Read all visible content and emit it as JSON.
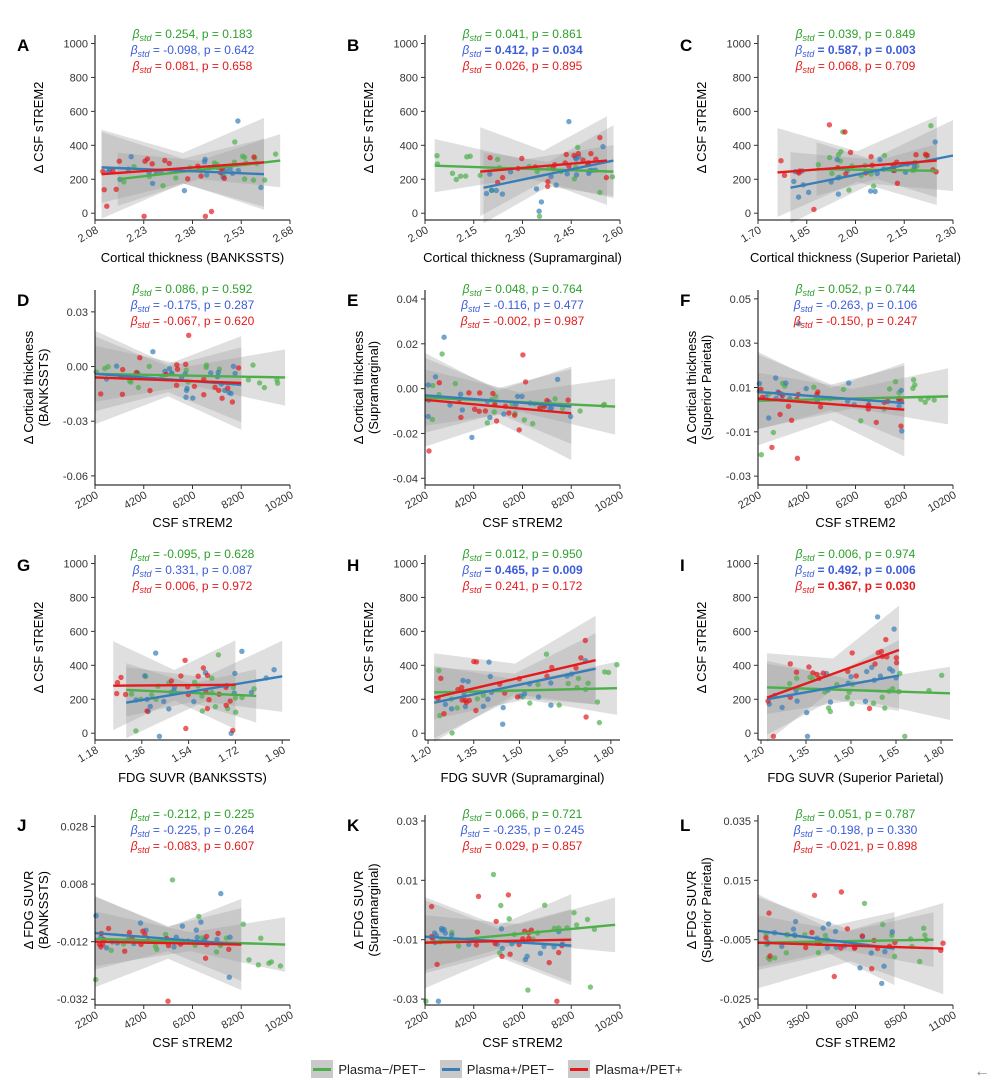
{
  "legend": {
    "items": [
      {
        "label": "Plasma−/PET−",
        "color": "#4daf4a"
      },
      {
        "label": "Plasma+/PET−",
        "color": "#377eb8"
      },
      {
        "label": "Plasma+/PET+",
        "color": "#e41a1c"
      }
    ]
  },
  "stat_colors": [
    "#2ca02c",
    "#3b5bdb",
    "#e41a1c"
  ],
  "chart_data": [
    {
      "panel": "A",
      "type": "scatter",
      "xlabel": "Cortical thickness (BANKSSTS)",
      "ylabel": [
        "Δ CSF sTREM2"
      ],
      "xlim": [
        2.08,
        2.68
      ],
      "ylim": [
        -40,
        1050
      ],
      "xticks": [
        "2.08",
        "2.23",
        "2.38",
        "2.53",
        "2.68"
      ],
      "yticks": [
        "0",
        "200",
        "400",
        "600",
        "800",
        "1000"
      ],
      "tick_rotate": true,
      "stats": [
        {
          "text": "= 0.254, p = 0.183",
          "bold": false
        },
        {
          "text": "= -0.098, p = 0.642",
          "bold": false
        },
        {
          "text": "= 0.081, p = 0.658",
          "bold": false
        }
      ],
      "lines": [
        [
          2.15,
          200,
          2.65,
          310
        ],
        [
          2.1,
          270,
          2.6,
          230
        ],
        [
          2.1,
          230,
          2.6,
          300
        ]
      ],
      "seed": 11
    },
    {
      "panel": "B",
      "type": "scatter",
      "xlabel": "Cortical thickness (Supramarginal)",
      "ylabel": [
        "Δ CSF sTREM2"
      ],
      "xlim": [
        2.0,
        2.6
      ],
      "ylim": [
        -40,
        1050
      ],
      "xticks": [
        "2.00",
        "2.15",
        "2.30",
        "2.45",
        "2.60"
      ],
      "yticks": [
        "0",
        "200",
        "400",
        "600",
        "800",
        "1000"
      ],
      "tick_rotate": true,
      "stats": [
        {
          "text": "= 0.041, p = 0.861",
          "bold": false
        },
        {
          "text": "= 0.412, p = 0.034",
          "bold": true
        },
        {
          "text": "= 0.026, p = 0.895",
          "bold": false
        }
      ],
      "lines": [
        [
          2.03,
          280,
          2.58,
          245
        ],
        [
          2.18,
          150,
          2.58,
          310
        ],
        [
          2.17,
          245,
          2.56,
          310
        ]
      ],
      "seed": 22
    },
    {
      "panel": "C",
      "type": "scatter",
      "xlabel": "Cortical thickness (Superior Parietal)",
      "ylabel": [
        "Δ CSF sTREM2"
      ],
      "xlim": [
        1.7,
        2.3
      ],
      "ylim": [
        -40,
        1050
      ],
      "xticks": [
        "1.70",
        "1.85",
        "2.00",
        "2.15",
        "2.30"
      ],
      "yticks": [
        "0",
        "200",
        "400",
        "600",
        "800",
        "1000"
      ],
      "tick_rotate": true,
      "stats": [
        {
          "text": "= 0.039, p = 0.849",
          "bold": false
        },
        {
          "text": "= 0.587, p = 0.003",
          "bold": true
        },
        {
          "text": "= 0.068, p = 0.709",
          "bold": false
        }
      ],
      "lines": [
        [
          1.88,
          260,
          2.25,
          250
        ],
        [
          1.8,
          150,
          2.3,
          340
        ],
        [
          1.76,
          240,
          2.25,
          310
        ]
      ],
      "seed": 33
    },
    {
      "panel": "D",
      "type": "scatter",
      "xlabel": "CSF sTREM2",
      "ylabel": [
        "Δ Cortical thickness",
        "(BANKSSTS)"
      ],
      "xlim": [
        2200,
        10200
      ],
      "ylim": [
        -0.065,
        0.042
      ],
      "xticks": [
        "2200",
        "4200",
        "6200",
        "8200",
        "10200"
      ],
      "yticks": [
        "-0.06",
        "-0.03",
        "0.00",
        "0.03"
      ],
      "tick_rotate": true,
      "stats": [
        {
          "text": "= 0.086, p = 0.592",
          "bold": false
        },
        {
          "text": "= -0.175, p = 0.287",
          "bold": false
        },
        {
          "text": "= -0.067, p = 0.620",
          "bold": false
        }
      ],
      "lines": [
        [
          2200,
          -0.004,
          10000,
          -0.006
        ],
        [
          2200,
          -0.004,
          8200,
          -0.01
        ],
        [
          2200,
          -0.006,
          8200,
          -0.009
        ]
      ],
      "seed": 44
    },
    {
      "panel": "E",
      "type": "scatter",
      "xlabel": "CSF sTREM2",
      "ylabel": [
        "Δ Cortical thickness",
        "(Supramarginal)"
      ],
      "xlim": [
        2200,
        10200
      ],
      "ylim": [
        -0.043,
        0.044
      ],
      "xticks": [
        "2200",
        "4200",
        "6200",
        "8200",
        "10200"
      ],
      "yticks": [
        "-0.04",
        "-0.02",
        "0.00",
        "0.02",
        "0.04"
      ],
      "tick_rotate": true,
      "stats": [
        {
          "text": "= 0.048, p = 0.764",
          "bold": false
        },
        {
          "text": "= -0.116, p = 0.477",
          "bold": false
        },
        {
          "text": "= -0.002, p = 0.987",
          "bold": false
        }
      ],
      "lines": [
        [
          2200,
          -0.004,
          10000,
          -0.008
        ],
        [
          2200,
          -0.003,
          8200,
          -0.008
        ],
        [
          2200,
          -0.005,
          8200,
          -0.011
        ]
      ],
      "seed": 55
    },
    {
      "panel": "F",
      "type": "scatter",
      "xlabel": "CSF sTREM2",
      "ylabel": [
        "Δ Cortical thickness",
        "(Superior Parietal)"
      ],
      "xlim": [
        2200,
        10200
      ],
      "ylim": [
        -0.034,
        0.054
      ],
      "xticks": [
        "2200",
        "4200",
        "6200",
        "8200",
        "10200"
      ],
      "yticks": [
        "-0.03",
        "-0.01",
        "0.01",
        "0.03",
        "0.05"
      ],
      "tick_rotate": true,
      "stats": [
        {
          "text": "= 0.052, p = 0.744",
          "bold": false
        },
        {
          "text": "= -0.263, p = 0.106",
          "bold": false
        },
        {
          "text": "= -0.150, p = 0.247",
          "bold": false
        }
      ],
      "lines": [
        [
          2200,
          0.004,
          10000,
          0.006
        ],
        [
          2200,
          0.008,
          8200,
          0.003
        ],
        [
          2200,
          0.005,
          8200,
          0.0
        ]
      ],
      "seed": 66
    },
    {
      "panel": "G",
      "type": "scatter",
      "xlabel": "FDG SUVR (BANKSSTS)",
      "ylabel": [
        "Δ CSF sTREM2"
      ],
      "xlim": [
        1.18,
        1.93
      ],
      "ylim": [
        -40,
        1050
      ],
      "xticks": [
        "1.18",
        "1.36",
        "1.54",
        "1.72",
        "1.90"
      ],
      "yticks": [
        "0",
        "200",
        "400",
        "600",
        "800",
        "1000"
      ],
      "tick_rotate": true,
      "stats": [
        {
          "text": "= -0.095, p = 0.628",
          "bold": false
        },
        {
          "text": "= 0.331, p = 0.087",
          "bold": false
        },
        {
          "text": "= 0.006, p = 0.972",
          "bold": false
        }
      ],
      "lines": [
        [
          1.3,
          255,
          1.8,
          220
        ],
        [
          1.3,
          180,
          1.9,
          335
        ],
        [
          1.25,
          280,
          1.72,
          285
        ]
      ],
      "seed": 77
    },
    {
      "panel": "H",
      "type": "scatter",
      "xlabel": "FDG SUVR (Supramarginal)",
      "ylabel": [
        "Δ CSF sTREM2"
      ],
      "xlim": [
        1.19,
        1.83
      ],
      "ylim": [
        -40,
        1050
      ],
      "xticks": [
        "1.20",
        "1.35",
        "1.50",
        "1.65",
        "1.80"
      ],
      "yticks": [
        "0",
        "200",
        "400",
        "600",
        "800",
        "1000"
      ],
      "tick_rotate": true,
      "stats": [
        {
          "text": "= 0.012, p = 0.950",
          "bold": false
        },
        {
          "text": "= 0.465, p = 0.009",
          "bold": true
        },
        {
          "text": "= 0.241, p = 0.172",
          "bold": false
        }
      ],
      "lines": [
        [
          1.22,
          240,
          1.82,
          265
        ],
        [
          1.22,
          180,
          1.75,
          380
        ],
        [
          1.22,
          210,
          1.75,
          430
        ]
      ],
      "seed": 88
    },
    {
      "panel": "I",
      "type": "scatter",
      "xlabel": "FDG SUVR (Superior Parietal)",
      "ylabel": [
        "Δ CSF sTREM2"
      ],
      "xlim": [
        1.19,
        1.84
      ],
      "ylim": [
        -40,
        1050
      ],
      "xticks": [
        "1.20",
        "1.35",
        "1.50",
        "1.65",
        "1.80"
      ],
      "yticks": [
        "0",
        "200",
        "400",
        "600",
        "800",
        "1000"
      ],
      "tick_rotate": true,
      "stats": [
        {
          "text": "= 0.006, p = 0.974",
          "bold": false
        },
        {
          "text": "= 0.492, p = 0.006",
          "bold": true
        },
        {
          "text": "= 0.367, p = 0.030",
          "bold": true
        }
      ],
      "lines": [
        [
          1.22,
          270,
          1.83,
          235
        ],
        [
          1.22,
          200,
          1.66,
          340
        ],
        [
          1.22,
          210,
          1.66,
          490
        ]
      ],
      "seed": 99
    },
    {
      "panel": "J",
      "type": "scatter",
      "xlabel": "CSF sTREM2",
      "ylabel": [
        "Δ FDG SUVR",
        "(BANKSSTS)"
      ],
      "xlim": [
        2200,
        10200
      ],
      "ylim": [
        -0.034,
        0.032
      ],
      "xticks": [
        "2200",
        "4200",
        "6200",
        "8200",
        "10200"
      ],
      "yticks": [
        "-0.032",
        "-0.012",
        "0.008",
        "0.028"
      ],
      "tick_rotate": true,
      "stats": [
        {
          "text": "= -0.212, p = 0.225",
          "bold": false
        },
        {
          "text": "= -0.225, p = 0.264",
          "bold": false
        },
        {
          "text": "= -0.083, p = 0.607",
          "bold": false
        }
      ],
      "lines": [
        [
          2200,
          -0.011,
          10000,
          -0.013
        ],
        [
          2200,
          -0.009,
          8200,
          -0.013
        ],
        [
          2200,
          -0.012,
          8200,
          -0.013
        ]
      ],
      "seed": 110
    },
    {
      "panel": "K",
      "type": "scatter",
      "xlabel": "CSF sTREM2",
      "ylabel": [
        "Δ FDG SUVR",
        "(Supramarginal)"
      ],
      "xlim": [
        2200,
        10200
      ],
      "ylim": [
        -0.032,
        0.032
      ],
      "xticks": [
        "2200",
        "4200",
        "6200",
        "8200",
        "10200"
      ],
      "yticks": [
        "-0.03",
        "-0.01",
        "0.01",
        "0.03"
      ],
      "tick_rotate": true,
      "stats": [
        {
          "text": "= 0.066, p = 0.721",
          "bold": false
        },
        {
          "text": "= -0.235, p = 0.245",
          "bold": false
        },
        {
          "text": "= 0.029, p = 0.857",
          "bold": false
        }
      ],
      "lines": [
        [
          2200,
          -0.011,
          10000,
          -0.005
        ],
        [
          2200,
          -0.009,
          8200,
          -0.012
        ],
        [
          2200,
          -0.011,
          8200,
          -0.01
        ]
      ],
      "seed": 121
    },
    {
      "panel": "L",
      "type": "scatter",
      "xlabel": "CSF sTREM2",
      "ylabel": [
        "Δ FDG SUVR",
        "(Superior Parietal)"
      ],
      "xlim": [
        1000,
        11000
      ],
      "ylim": [
        -0.027,
        0.037
      ],
      "xticks": [
        "1000",
        "3500",
        "6000",
        "8500",
        "11000"
      ],
      "yticks": [
        "-0.025",
        "-0.005",
        "0.015",
        "0.035"
      ],
      "tick_rotate": true,
      "stats": [
        {
          "text": "= 0.051, p = 0.787",
          "bold": false
        },
        {
          "text": "= -0.198, p = 0.330",
          "bold": false
        },
        {
          "text": "= -0.021, p = 0.898",
          "bold": false
        }
      ],
      "lines": [
        [
          1000,
          -0.006,
          10000,
          -0.005
        ],
        [
          1000,
          -0.002,
          8000,
          -0.008
        ],
        [
          1000,
          -0.006,
          10500,
          -0.008
        ]
      ],
      "seed": 132
    }
  ]
}
